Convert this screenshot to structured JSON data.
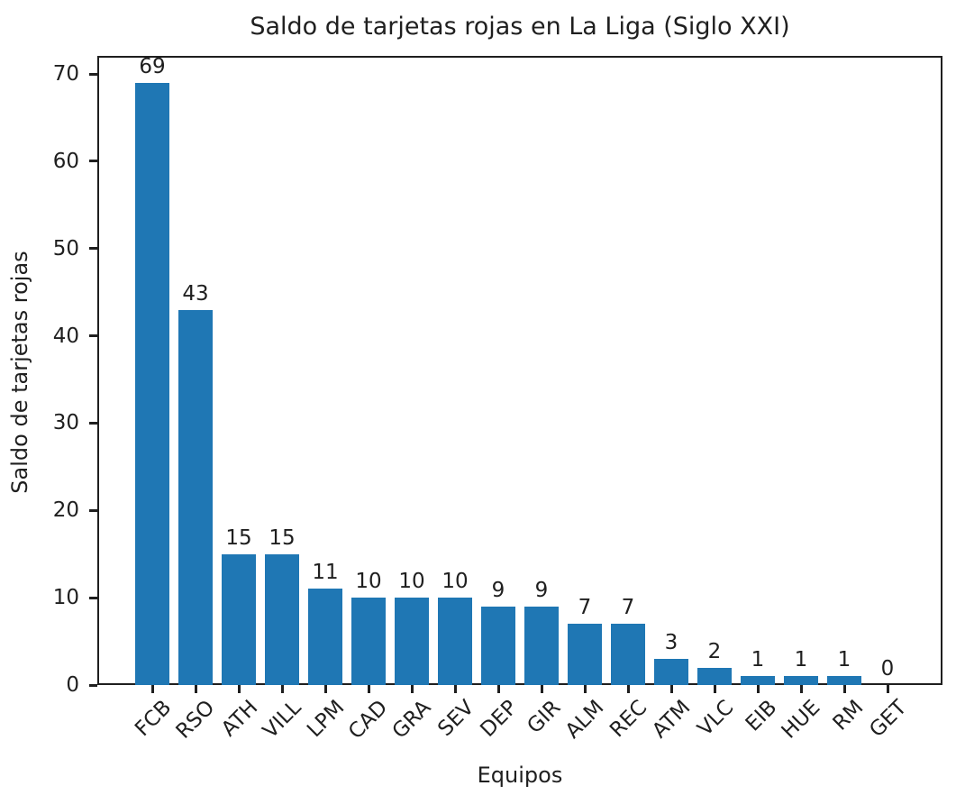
{
  "chart_data": {
    "type": "bar",
    "title": "Saldo de tarjetas rojas en La Liga (Siglo XXI)",
    "xlabel": "Equipos",
    "ylabel": "Saldo de tarjetas rojas",
    "categories": [
      "FCB",
      "RSO",
      "ATH",
      "VILL",
      "LPM",
      "CAD",
      "GRA",
      "SEV",
      "DEP",
      "GIR",
      "ALM",
      "REC",
      "ATM",
      "VLC",
      "EIB",
      "HUE",
      "RM",
      "GET"
    ],
    "values": [
      69,
      43,
      15,
      15,
      11,
      10,
      10,
      10,
      9,
      9,
      7,
      7,
      3,
      2,
      1,
      1,
      1,
      0
    ],
    "bar_labels": [
      69,
      43,
      15,
      15,
      11,
      10,
      10,
      10,
      9,
      9,
      7,
      7,
      3,
      2,
      1,
      1,
      1,
      0
    ],
    "yticks": [
      0,
      10,
      20,
      30,
      40,
      50,
      60,
      70
    ],
    "ylim": [
      0,
      72
    ],
    "bar_color": "#1f77b4",
    "axis_color": "#1f1f1f",
    "background_color": "#ffffff",
    "grid": false,
    "legend": null,
    "xtick_rotation": 45
  }
}
